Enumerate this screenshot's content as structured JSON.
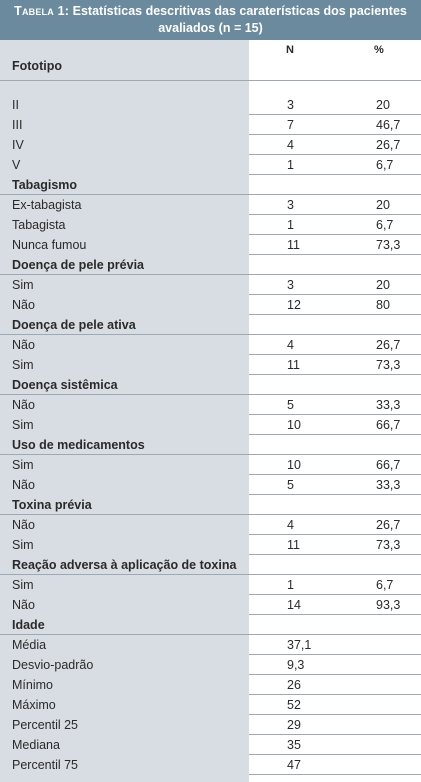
{
  "table": {
    "title_label": "Tabela 1:",
    "title_line1": "Estatísticas descritivas das caraterísticas dos pacientes",
    "title_line2": "avaliados (n = 15)",
    "col_category": "Fototipo",
    "col_n": "N",
    "col_pct": "%",
    "rows": [
      {
        "type": "item",
        "label": "II",
        "n": "3",
        "pct": "20"
      },
      {
        "type": "item",
        "label": "III",
        "n": "7",
        "pct": "46,7"
      },
      {
        "type": "item",
        "label": "IV",
        "n": "4",
        "pct": "26,7"
      },
      {
        "type": "item",
        "label": "V",
        "n": "1",
        "pct": "6,7"
      },
      {
        "type": "section",
        "label": "Tabagismo"
      },
      {
        "type": "item",
        "label": "Ex-tabagista",
        "n": "3",
        "pct": "20"
      },
      {
        "type": "item",
        "label": "Tabagista",
        "n": "1",
        "pct": "6,7"
      },
      {
        "type": "item",
        "label": "Nunca fumou",
        "n": "11",
        "pct": "73,3"
      },
      {
        "type": "section",
        "label": "Doença de pele prévia"
      },
      {
        "type": "item",
        "label": "Sim",
        "n": "3",
        "pct": "20"
      },
      {
        "type": "item",
        "label": "Não",
        "n": "12",
        "pct": "80"
      },
      {
        "type": "section",
        "label": "Doença de pele ativa"
      },
      {
        "type": "item",
        "label": "Não",
        "n": "4",
        "pct": "26,7"
      },
      {
        "type": "item",
        "label": "Sim",
        "n": "11",
        "pct": "73,3"
      },
      {
        "type": "section",
        "label": "Doença sistêmica"
      },
      {
        "type": "item",
        "label": "Não",
        "n": "5",
        "pct": "33,3"
      },
      {
        "type": "item",
        "label": "Sim",
        "n": "10",
        "pct": "66,7"
      },
      {
        "type": "section",
        "label": "Uso de medicamentos"
      },
      {
        "type": "item",
        "label": "Sim",
        "n": "10",
        "pct": "66,7"
      },
      {
        "type": "item",
        "label": "Não",
        "n": "5",
        "pct": "33,3"
      },
      {
        "type": "section",
        "label": "Toxina prévia"
      },
      {
        "type": "item",
        "label": "Não",
        "n": "4",
        "pct": "26,7"
      },
      {
        "type": "item",
        "label": "Sim",
        "n": "11",
        "pct": "73,3"
      },
      {
        "type": "section",
        "label": "Reação adversa à aplicação de toxina"
      },
      {
        "type": "item",
        "label": "Sim",
        "n": "1",
        "pct": "6,7"
      },
      {
        "type": "item",
        "label": "Não",
        "n": "14",
        "pct": "93,3"
      },
      {
        "type": "section",
        "label": "Idade"
      },
      {
        "type": "item",
        "label": "Média",
        "n": "37,1",
        "pct": ""
      },
      {
        "type": "item",
        "label": "Desvio-padrão",
        "n": "9,3",
        "pct": ""
      },
      {
        "type": "item",
        "label": "Mínimo",
        "n": "26",
        "pct": ""
      },
      {
        "type": "item",
        "label": "Máximo",
        "n": "52",
        "pct": ""
      },
      {
        "type": "item",
        "label": "Percentil 25",
        "n": "29",
        "pct": ""
      },
      {
        "type": "item",
        "label": "Mediana",
        "n": "35",
        "pct": ""
      },
      {
        "type": "item",
        "label": "Percentil 75",
        "n": "47",
        "pct": ""
      }
    ]
  },
  "colors": {
    "header_bg": "#6c8a9e",
    "left_column_bg": "#d7dde2",
    "rule": "#9fa9b1"
  }
}
